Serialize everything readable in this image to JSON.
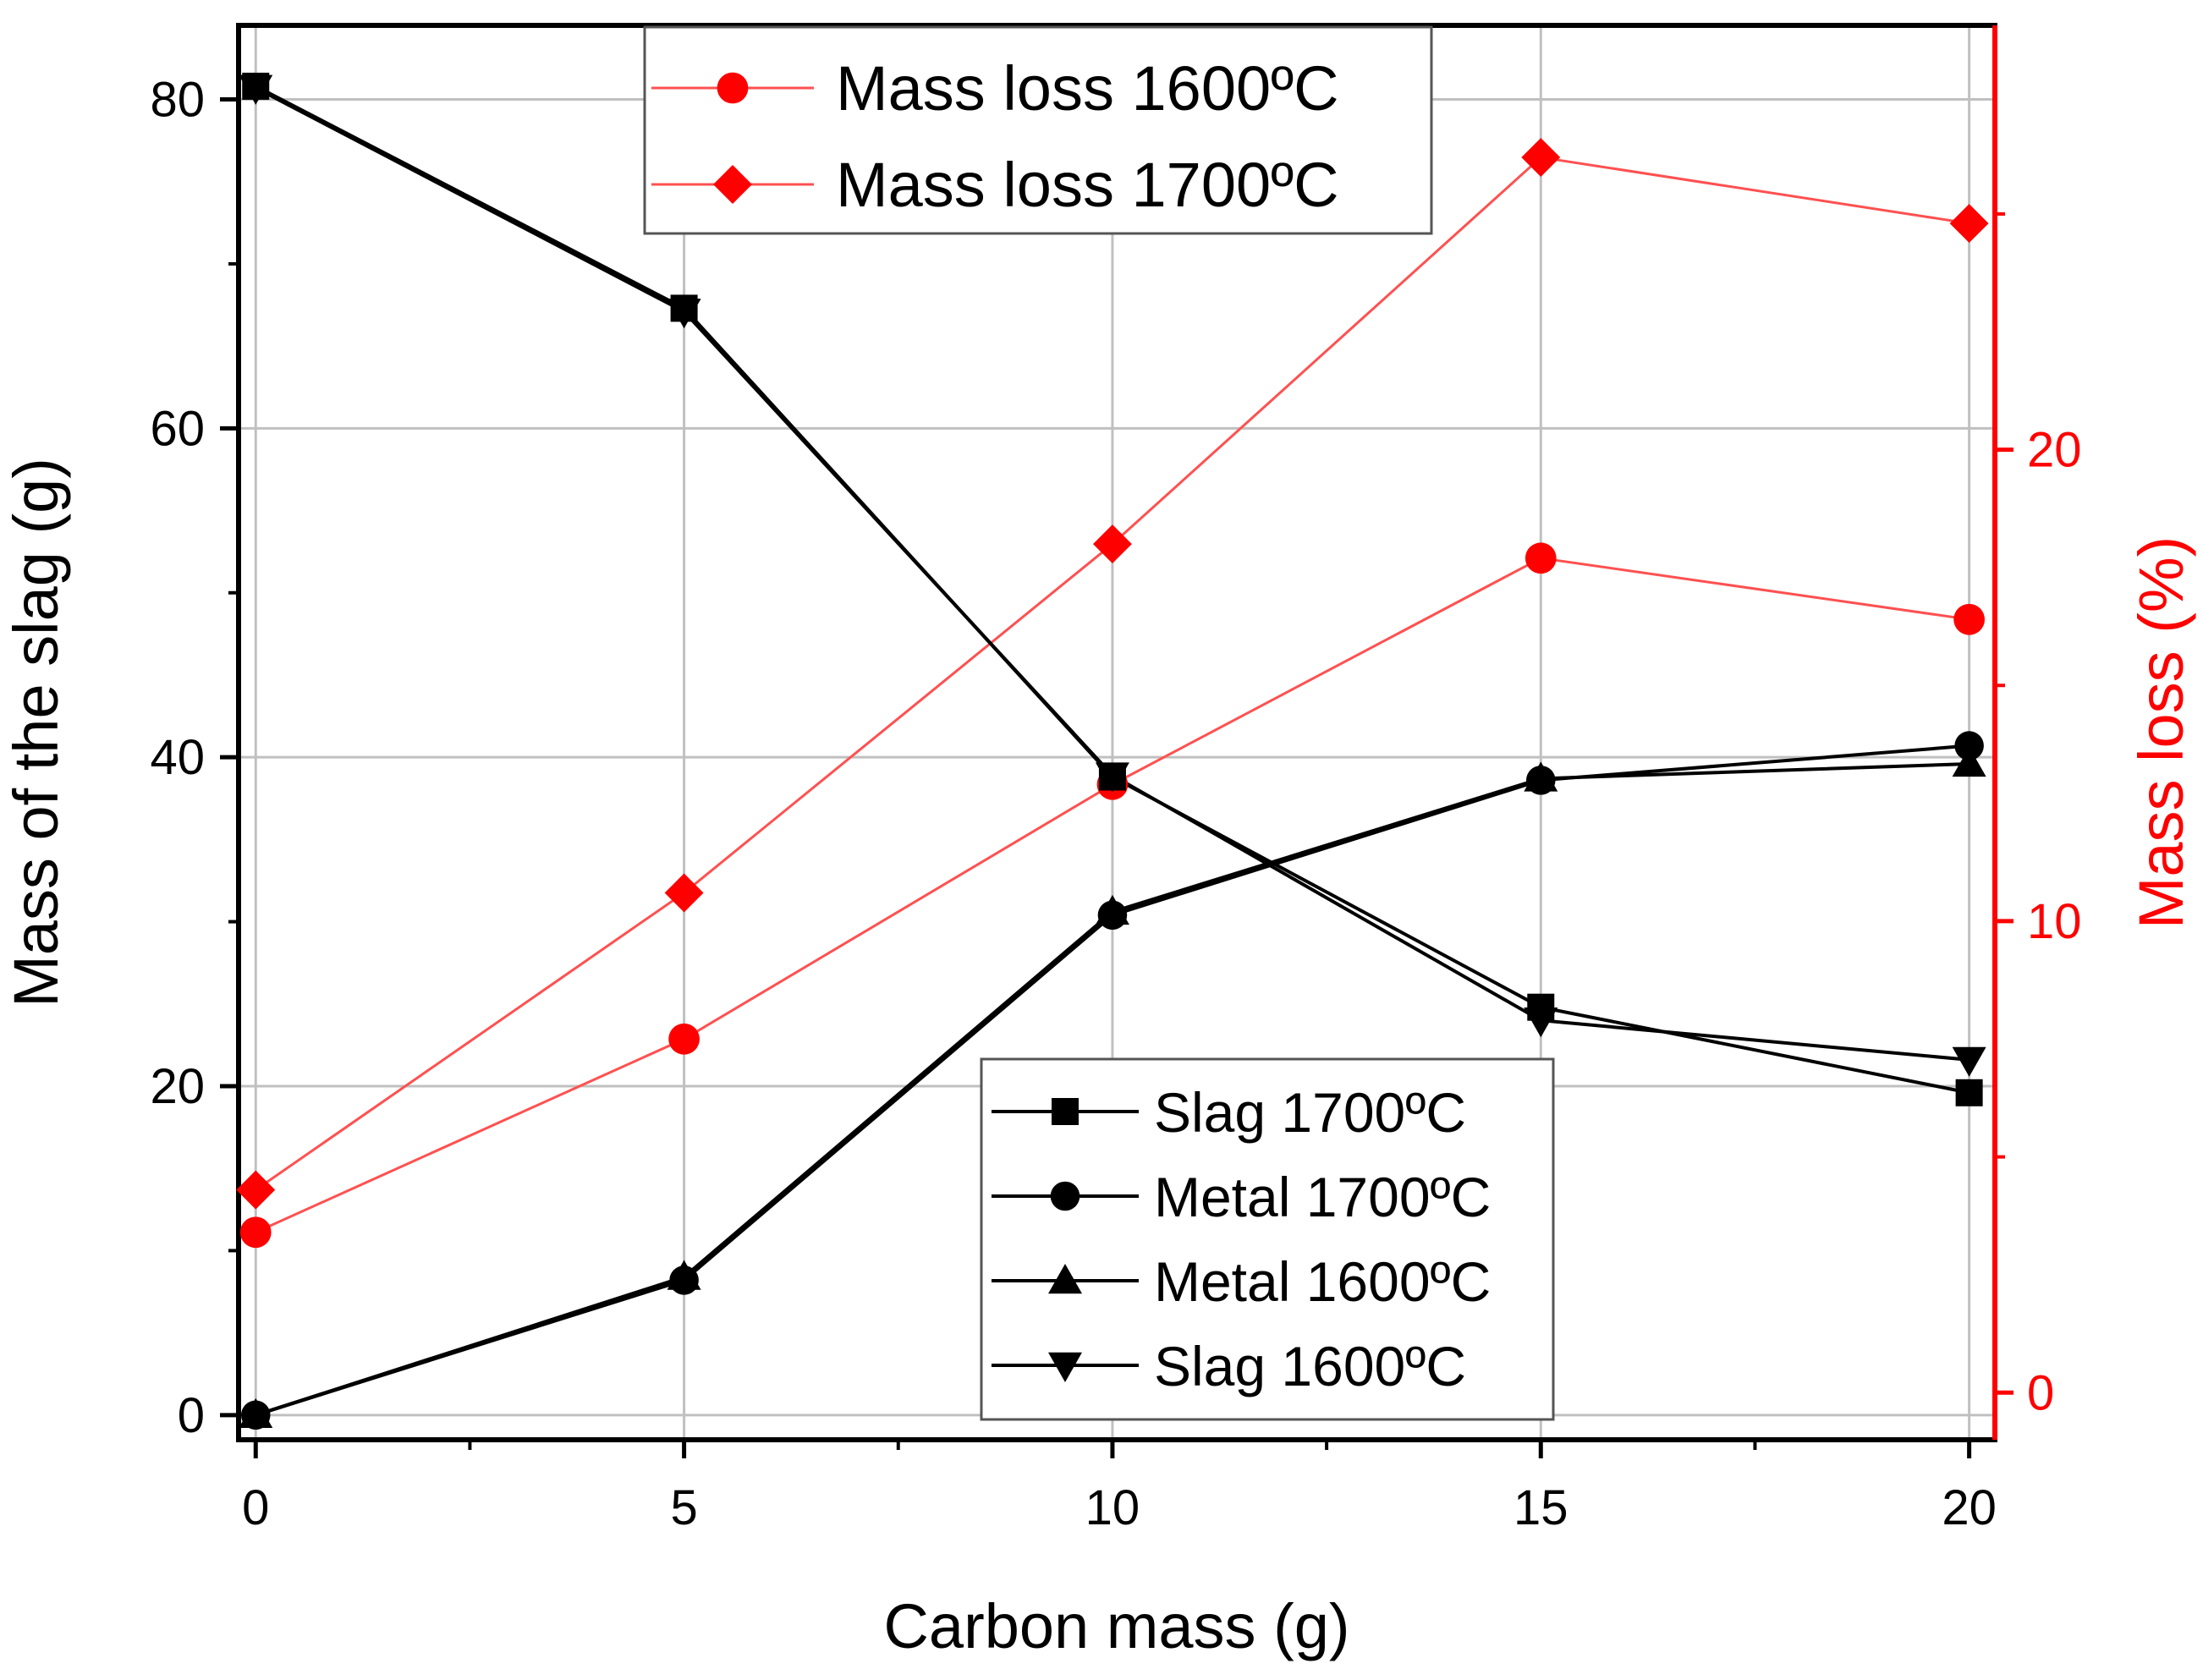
{
  "chart_data": {
    "type": "line",
    "xlabel": "Carbon mass (g)",
    "ylabel": "Mass of the slag (g)",
    "y2label": "Mass loss (%)",
    "xlim": [
      -0.2,
      20.3
    ],
    "ylim": [
      -1.5,
      84.5
    ],
    "y2lim": [
      -1.0,
      29.0
    ],
    "x_ticks": [
      0,
      5,
      10,
      15,
      20
    ],
    "y_ticks": [
      0,
      20,
      40,
      60,
      80
    ],
    "y2_ticks": [
      0,
      10,
      20
    ],
    "grid": true,
    "x": [
      0,
      5,
      10,
      15,
      20
    ],
    "series_left": [
      {
        "name": "Slag 1700ºC",
        "marker": "square",
        "values": [
          80.8,
          67.3,
          38.8,
          24.8,
          19.6
        ]
      },
      {
        "name": "Metal 1700ºC",
        "marker": "circle",
        "values": [
          0.0,
          8.2,
          30.4,
          38.6,
          40.7
        ]
      },
      {
        "name": "Metal 1600ºC",
        "marker": "triangle-up",
        "values": [
          0.0,
          8.4,
          30.6,
          38.7,
          39.6
        ]
      },
      {
        "name": "Slag 1600ºC",
        "marker": "triangle-down",
        "values": [
          80.7,
          67.1,
          38.9,
          24.0,
          21.6
        ]
      }
    ],
    "series_right": [
      {
        "name": "Mass loss 1600ºC",
        "marker": "circle",
        "values": [
          3.4,
          7.5,
          12.9,
          17.7,
          16.4
        ]
      },
      {
        "name": "Mass loss 1700ºC",
        "marker": "diamond",
        "values": [
          4.3,
          10.6,
          18.0,
          26.2,
          24.8
        ]
      }
    ],
    "legend_top": [
      "Mass loss 1600ºC",
      "Mass loss 1700ºC"
    ],
    "legend_bottom": [
      "Slag 1700ºC",
      "Metal 1700ºC",
      "Metal 1600ºC",
      "Slag 1600ºC"
    ],
    "colors": {
      "left": "#000000",
      "right": "#ff0000",
      "right_line": "#ff5050",
      "grid": "#c0c0c0"
    }
  }
}
